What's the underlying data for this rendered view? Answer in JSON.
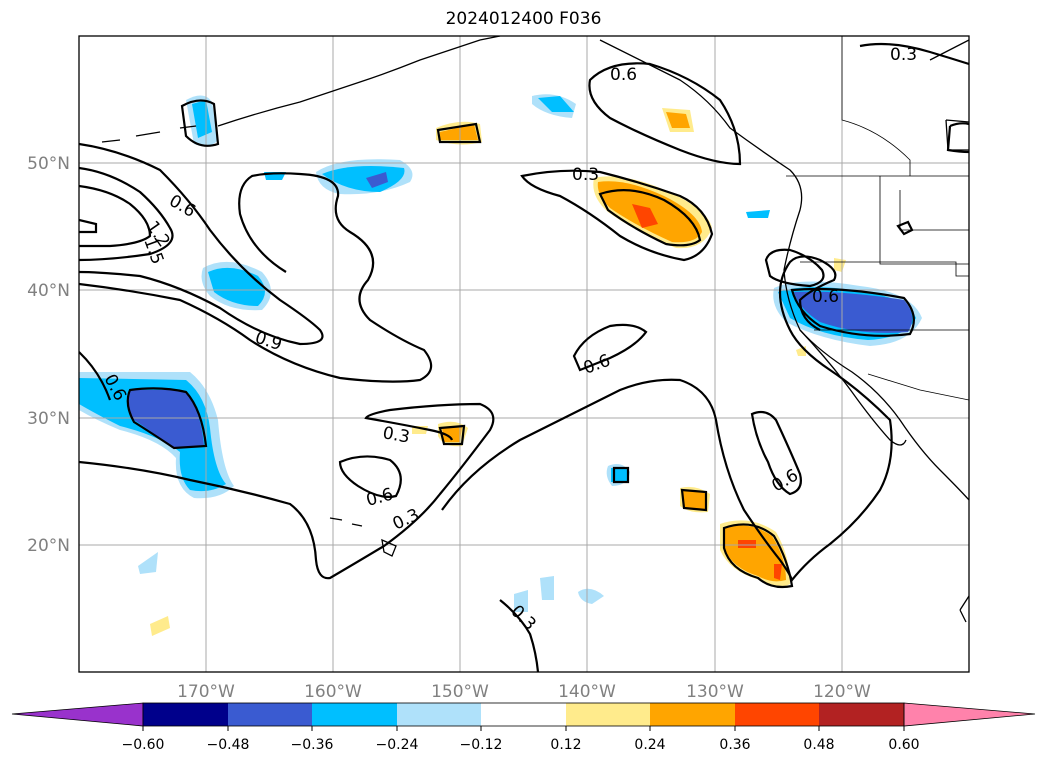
{
  "title": "2024012400 F036",
  "map": {
    "lon_labels": [
      "170°W",
      "160°W",
      "150°W",
      "140°W",
      "130°W",
      "120°W"
    ],
    "lat_labels": [
      "50°N",
      "40°N",
      "30°N",
      "20°N"
    ],
    "gridlines": true
  },
  "colorbar": {
    "ticks": [
      "−0.60",
      "−0.48",
      "−0.36",
      "−0.24",
      "−0.12",
      "0.12",
      "0.24",
      "0.36",
      "0.48",
      "0.60"
    ],
    "colors": [
      "#9932cc",
      "#00008b",
      "#3a5bd1",
      "#00bfff",
      "#afe1fa",
      "#ffffff",
      "#ffeb8c",
      "#ffa500",
      "#ff4500",
      "#b22222",
      "#ff82ab"
    ]
  },
  "contour_labels": [
    "0.3",
    "0.6",
    "0.3",
    "0.6",
    "1.2",
    "1.5",
    "0.9",
    "0.6",
    "0.6",
    "0.3",
    "0.6",
    "0.3",
    "0.6",
    "0.6",
    "0.3"
  ]
}
